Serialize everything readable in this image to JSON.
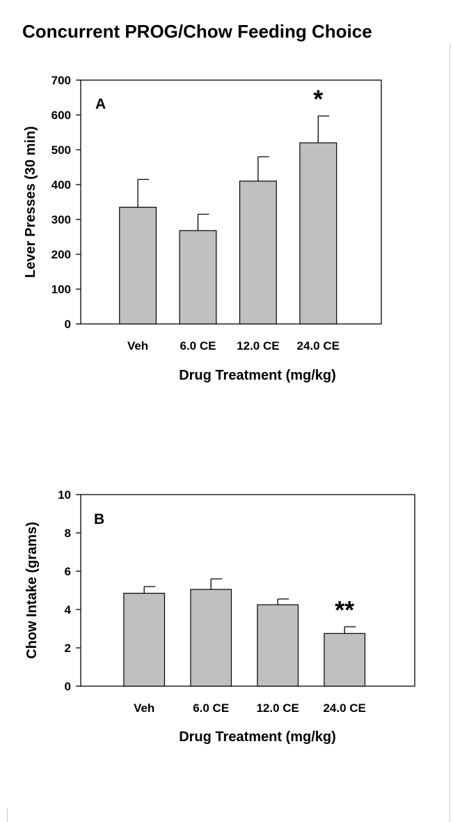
{
  "title": "Concurrent PROG/Chow Feeding Choice",
  "colors": {
    "bar_fill": "#c0c0c0",
    "bar_stroke": "#000000",
    "axis": "#000000"
  },
  "chart_data": [
    {
      "type": "bar",
      "panel": "A",
      "categories": [
        "Veh",
        "6.0 CE",
        "12.0 CE",
        "24.0 CE"
      ],
      "values": [
        335,
        268,
        410,
        520
      ],
      "errors": [
        80,
        47,
        70,
        77
      ],
      "annotations": [
        "",
        "",
        "",
        "*"
      ],
      "ylabel": "Lever Presses (30 min)",
      "xlabel": "Drug Treatment (mg/kg)",
      "ylim": [
        0,
        700
      ],
      "yticks": [
        0,
        100,
        200,
        300,
        400,
        500,
        600,
        700
      ],
      "error_bars": "upper only",
      "grid": false
    },
    {
      "type": "bar",
      "panel": "B",
      "categories": [
        "Veh",
        "6.0 CE",
        "12.0 CE",
        "24.0 CE"
      ],
      "values": [
        4.85,
        5.05,
        4.25,
        2.75
      ],
      "errors": [
        0.35,
        0.55,
        0.3,
        0.35
      ],
      "annotations": [
        "",
        "",
        "",
        "**"
      ],
      "ylabel": "Chow Intake (grams)",
      "xlabel": "Drug Treatment (mg/kg)",
      "ylim": [
        0,
        10
      ],
      "yticks": [
        0,
        2,
        4,
        6,
        8,
        10
      ],
      "error_bars": "upper only",
      "grid": false
    }
  ]
}
